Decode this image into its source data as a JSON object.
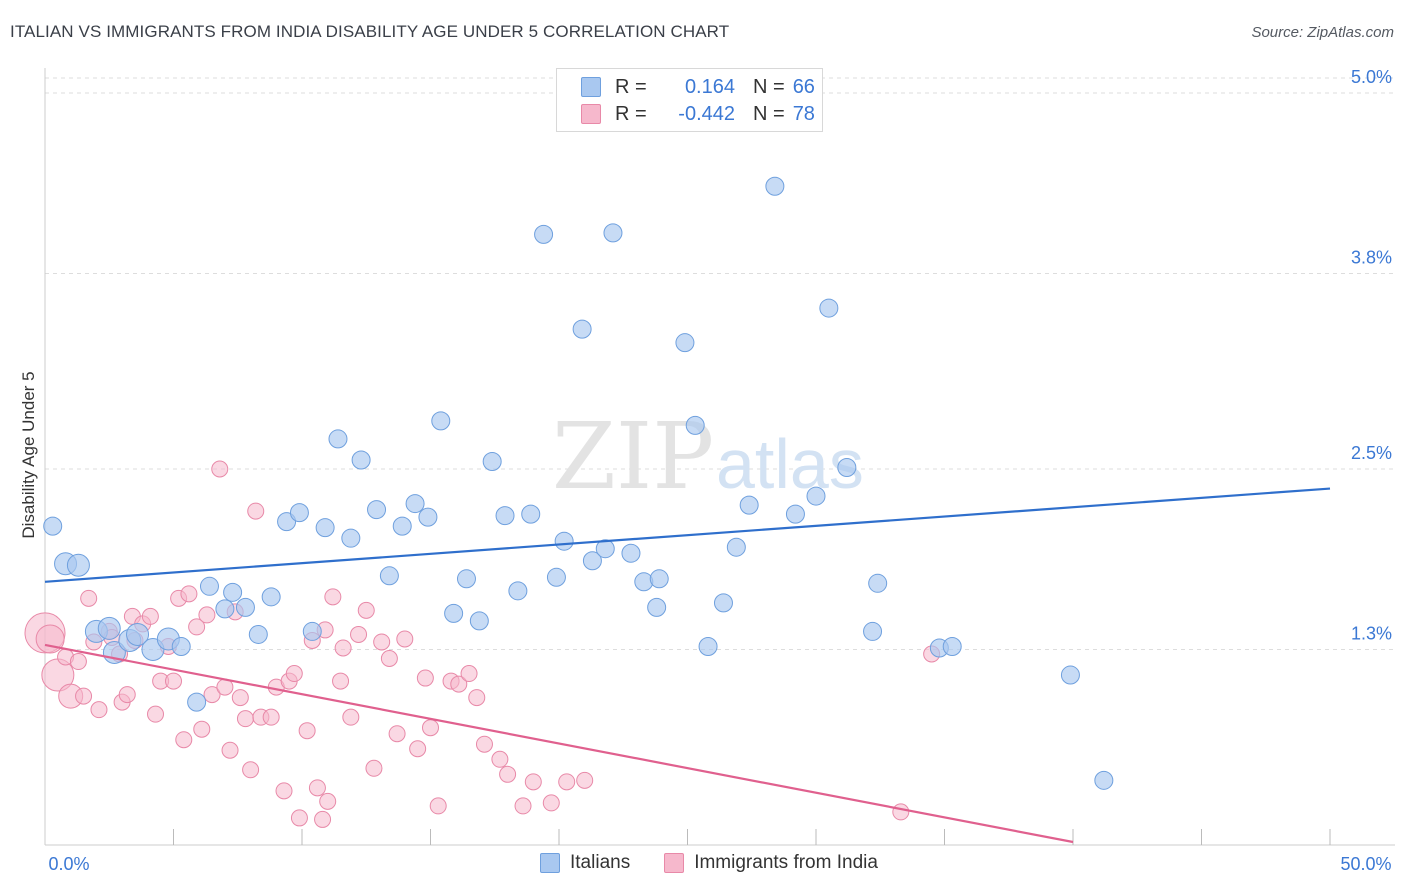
{
  "header": {
    "title": "ITALIAN VS IMMIGRANTS FROM INDIA DISABILITY AGE UNDER 5 CORRELATION CHART",
    "source": "Source: ZipAtlas.com"
  },
  "watermark": {
    "part1": "ZIP",
    "part2": "atlas"
  },
  "legend": {
    "rows": [
      {
        "r_label": "R =",
        "r_value": "0.164",
        "n_label": "N =",
        "n_value": "66",
        "color": "#a9c8f0"
      },
      {
        "r_label": "R =",
        "r_value": "-0.442",
        "n_label": "N =",
        "n_value": "78",
        "color": "#f6b8cc"
      }
    ]
  },
  "bottom_legend": {
    "items": [
      {
        "label": "Italians",
        "color": "#a9c8f0"
      },
      {
        "label": "Immigrants from India",
        "color": "#f6b8cc"
      }
    ]
  },
  "colors": {
    "blue_fill": "#a9c8f0",
    "blue_stroke": "#6fa0de",
    "blue_line": "#2f6fcc",
    "pink_fill": "#f6b8cc",
    "pink_stroke": "#e889a8",
    "pink_line": "#e0608e",
    "grid": "#dddddd",
    "tick_label": "#3b78d4"
  },
  "chart_data": {
    "type": "scatter",
    "title": "ITALIAN VS IMMIGRANTS FROM INDIA DISABILITY AGE UNDER 5 CORRELATION CHART",
    "xlabel": "",
    "ylabel": "Disability Age Under 5",
    "xlim": [
      0,
      50
    ],
    "ylim": [
      0,
      5.2
    ],
    "x_tick_labels": [
      {
        "value": 0,
        "label": "0.0%"
      },
      {
        "value": 50,
        "label": "50.0%"
      }
    ],
    "y_tick_labels": [
      {
        "value": 1.3,
        "label": "1.3%"
      },
      {
        "value": 2.5,
        "label": "2.5%"
      },
      {
        "value": 3.8,
        "label": "3.8%"
      },
      {
        "value": 5.0,
        "label": "5.0%"
      }
    ],
    "grid": true,
    "legend_position": "top-center",
    "series": [
      {
        "name": "Italians",
        "r": 0.164,
        "n": 66,
        "trend": {
          "x": [
            0,
            50
          ],
          "y": [
            1.75,
            2.37
          ]
        },
        "points": [
          [
            0.3,
            2.12
          ],
          [
            0.8,
            1.87
          ],
          [
            1.3,
            1.86
          ],
          [
            2.0,
            1.42
          ],
          [
            2.5,
            1.44
          ],
          [
            2.7,
            1.28
          ],
          [
            3.3,
            1.36
          ],
          [
            3.6,
            1.4
          ],
          [
            4.2,
            1.3
          ],
          [
            4.8,
            1.37
          ],
          [
            5.3,
            1.32
          ],
          [
            5.9,
            0.95
          ],
          [
            6.4,
            1.72
          ],
          [
            7.0,
            1.57
          ],
          [
            7.3,
            1.68
          ],
          [
            7.8,
            1.58
          ],
          [
            8.3,
            1.4
          ],
          [
            8.8,
            1.65
          ],
          [
            9.4,
            2.15
          ],
          [
            9.9,
            2.21
          ],
          [
            10.4,
            1.42
          ],
          [
            10.9,
            2.11
          ],
          [
            11.4,
            2.7
          ],
          [
            11.9,
            2.04
          ],
          [
            12.3,
            2.56
          ],
          [
            12.9,
            2.23
          ],
          [
            13.4,
            1.79
          ],
          [
            13.9,
            2.12
          ],
          [
            14.4,
            2.27
          ],
          [
            14.9,
            2.18
          ],
          [
            15.4,
            2.82
          ],
          [
            15.9,
            1.54
          ],
          [
            16.4,
            1.77
          ],
          [
            16.9,
            1.49
          ],
          [
            17.4,
            2.55
          ],
          [
            17.9,
            2.19
          ],
          [
            18.4,
            1.69
          ],
          [
            18.9,
            2.2
          ],
          [
            19.4,
            4.06
          ],
          [
            19.9,
            1.78
          ],
          [
            20.2,
            2.02
          ],
          [
            20.9,
            3.43
          ],
          [
            21.3,
            1.89
          ],
          [
            21.8,
            1.97
          ],
          [
            22.1,
            4.07
          ],
          [
            22.8,
            1.94
          ],
          [
            23.3,
            1.75
          ],
          [
            23.8,
            1.58
          ],
          [
            23.9,
            1.77
          ],
          [
            24.9,
            3.34
          ],
          [
            25.3,
            2.79
          ],
          [
            25.8,
            1.32
          ],
          [
            26.4,
            1.61
          ],
          [
            26.9,
            1.98
          ],
          [
            27.4,
            2.26
          ],
          [
            28.4,
            4.38
          ],
          [
            29.2,
            2.2
          ],
          [
            30.0,
            2.32
          ],
          [
            30.5,
            3.57
          ],
          [
            31.2,
            2.51
          ],
          [
            32.2,
            1.42
          ],
          [
            32.4,
            1.74
          ],
          [
            34.8,
            1.31
          ],
          [
            35.3,
            1.32
          ],
          [
            39.9,
            1.13
          ],
          [
            41.2,
            0.43
          ]
        ]
      },
      {
        "name": "Immigrants from India",
        "r": -0.442,
        "n": 78,
        "trend": {
          "x": [
            0,
            40
          ],
          "y": [
            1.33,
            0.02
          ]
        },
        "points": [
          [
            0.0,
            1.41
          ],
          [
            0.2,
            1.37
          ],
          [
            0.5,
            1.13
          ],
          [
            0.8,
            1.25
          ],
          [
            1.0,
            0.99
          ],
          [
            1.3,
            1.22
          ],
          [
            1.5,
            0.99
          ],
          [
            1.7,
            1.64
          ],
          [
            1.9,
            1.35
          ],
          [
            2.1,
            0.9
          ],
          [
            2.5,
            1.42
          ],
          [
            2.6,
            1.38
          ],
          [
            2.9,
            1.27
          ],
          [
            3.0,
            0.95
          ],
          [
            3.2,
            1.0
          ],
          [
            3.4,
            1.52
          ],
          [
            3.5,
            1.36
          ],
          [
            3.8,
            1.47
          ],
          [
            4.1,
            1.52
          ],
          [
            4.3,
            0.87
          ],
          [
            4.5,
            1.09
          ],
          [
            4.8,
            1.32
          ],
          [
            5.0,
            1.09
          ],
          [
            5.2,
            1.64
          ],
          [
            5.4,
            0.7
          ],
          [
            5.6,
            1.67
          ],
          [
            5.9,
            1.45
          ],
          [
            6.1,
            0.77
          ],
          [
            6.3,
            1.53
          ],
          [
            6.5,
            1.0
          ],
          [
            6.8,
            2.5
          ],
          [
            7.0,
            1.05
          ],
          [
            7.2,
            0.63
          ],
          [
            7.4,
            1.55
          ],
          [
            7.6,
            0.98
          ],
          [
            7.8,
            0.84
          ],
          [
            8.0,
            0.5
          ],
          [
            8.2,
            2.22
          ],
          [
            8.4,
            0.85
          ],
          [
            8.8,
            0.85
          ],
          [
            9.0,
            1.05
          ],
          [
            9.3,
            0.36
          ],
          [
            9.5,
            1.09
          ],
          [
            9.7,
            1.14
          ],
          [
            9.9,
            0.18
          ],
          [
            10.2,
            0.76
          ],
          [
            10.4,
            1.36
          ],
          [
            10.6,
            0.38
          ],
          [
            10.8,
            0.17
          ],
          [
            10.9,
            1.43
          ],
          [
            11.0,
            0.29
          ],
          [
            11.2,
            1.65
          ],
          [
            11.5,
            1.09
          ],
          [
            11.6,
            1.31
          ],
          [
            11.9,
            0.85
          ],
          [
            12.2,
            1.4
          ],
          [
            12.5,
            1.56
          ],
          [
            12.8,
            0.51
          ],
          [
            13.1,
            1.35
          ],
          [
            13.4,
            1.24
          ],
          [
            13.7,
            0.74
          ],
          [
            14.0,
            1.37
          ],
          [
            14.5,
            0.64
          ],
          [
            14.8,
            1.11
          ],
          [
            15.0,
            0.78
          ],
          [
            15.3,
            0.26
          ],
          [
            15.8,
            1.09
          ],
          [
            16.1,
            1.07
          ],
          [
            16.5,
            1.14
          ],
          [
            16.8,
            0.98
          ],
          [
            17.1,
            0.67
          ],
          [
            17.7,
            0.57
          ],
          [
            18.0,
            0.47
          ],
          [
            18.6,
            0.26
          ],
          [
            19.0,
            0.42
          ],
          [
            19.7,
            0.28
          ],
          [
            20.3,
            0.42
          ],
          [
            21.0,
            0.43
          ]
        ],
        "extra_points": [
          [
            33.3,
            0.22
          ],
          [
            34.5,
            1.27
          ]
        ]
      }
    ]
  }
}
